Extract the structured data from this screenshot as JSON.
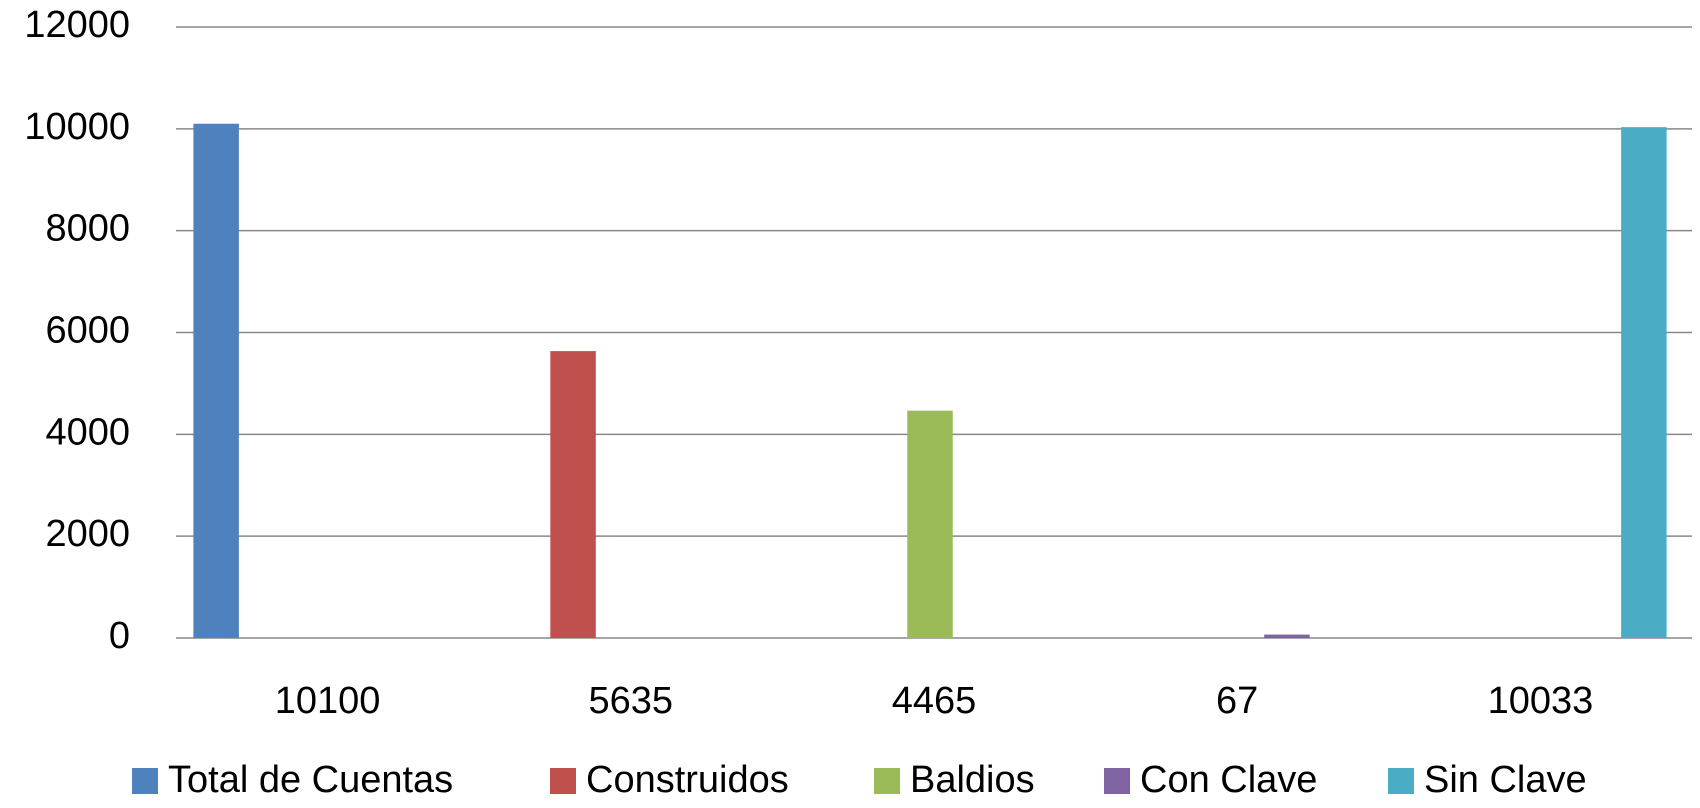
{
  "chart_data": {
    "type": "bar",
    "categories": [
      "10100",
      "5635",
      "4465",
      "67",
      "10033"
    ],
    "series": [
      {
        "name": "Total de Cuentas",
        "color": "#4f81bd",
        "values": [
          10100,
          null,
          null,
          null,
          null
        ]
      },
      {
        "name": "Construidos",
        "color": "#c0504d",
        "values": [
          null,
          5635,
          null,
          null,
          null
        ]
      },
      {
        "name": "Baldios",
        "color": "#9bbb59",
        "values": [
          null,
          null,
          4465,
          null,
          null
        ]
      },
      {
        "name": "Con Clave",
        "color": "#8064a2",
        "values": [
          null,
          null,
          null,
          67,
          null
        ]
      },
      {
        "name": "Sin Clave",
        "color": "#4bacc6",
        "values": [
          null,
          null,
          null,
          null,
          10033
        ]
      }
    ],
    "ylim": [
      0,
      12000
    ],
    "yticks": [
      0,
      2000,
      4000,
      6000,
      8000,
      10000,
      12000
    ],
    "grid": true,
    "legend": "bottom"
  }
}
